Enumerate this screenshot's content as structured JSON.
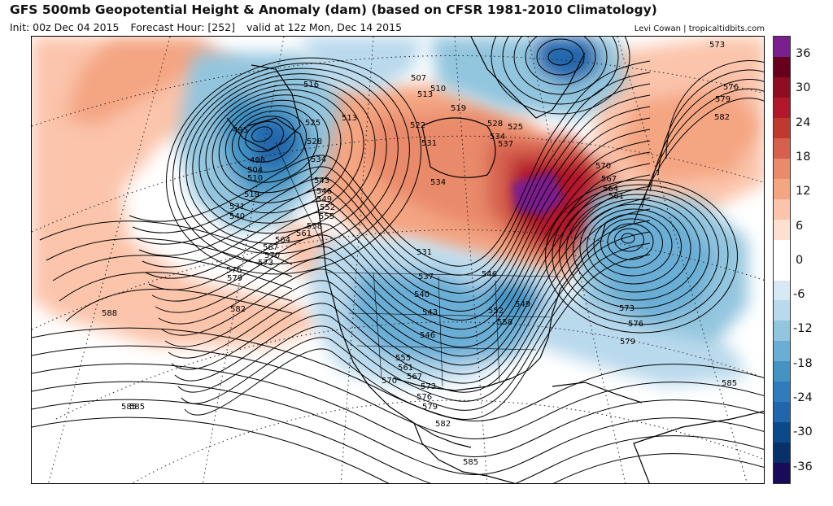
{
  "header": {
    "title": "GFS 500mb Geopotential Height & Anomaly (dam) (based on CFSR 1981-2010 Climatology)",
    "init": "Init: 00z Dec 04 2015",
    "forecast_hour": "Forecast Hour: [252]",
    "valid": "valid at 12z Mon, Dec 14 2015",
    "credit": "Levi Cowan | tropicaltidbits.com"
  },
  "colorbar": {
    "ticks": [
      "36",
      "30",
      "24",
      "18",
      "12",
      "6",
      "0",
      "-6",
      "-12",
      "-18",
      "-24",
      "-30",
      "-36"
    ],
    "colors": [
      "#1a0a5a",
      "#08306b",
      "#0b4a8a",
      "#2166ac",
      "#2f7cbc",
      "#4393c3",
      "#6aaed6",
      "#92c5de",
      "#b9d9ec",
      "#d6e9f4",
      "#ffffff",
      "#ffffff",
      "#fde0d0",
      "#fbc4ab",
      "#f4a582",
      "#e98a6a",
      "#d6604d",
      "#c0392f",
      "#b2182b",
      "#8e0d21",
      "#67001f",
      "#7b1f8e"
    ]
  },
  "contour_labels": [
    "495",
    "498",
    "504",
    "507",
    "510",
    "513",
    "516",
    "519",
    "522",
    "525",
    "528",
    "531",
    "534",
    "537",
    "540",
    "543",
    "546",
    "549",
    "552",
    "555",
    "558",
    "561",
    "564",
    "567",
    "570",
    "573",
    "576",
    "579",
    "582",
    "585",
    "588"
  ],
  "map_labels": [
    {
      "text": "495"
    },
    {
      "text": "498"
    },
    {
      "text": "504"
    },
    {
      "text": "510"
    },
    {
      "text": "519"
    },
    {
      "text": "531"
    },
    {
      "text": "540"
    },
    {
      "text": "516"
    },
    {
      "text": "525"
    },
    {
      "text": "528"
    },
    {
      "text": "534"
    },
    {
      "text": "543"
    },
    {
      "text": "546"
    },
    {
      "text": "549"
    },
    {
      "text": "552"
    },
    {
      "text": "555"
    },
    {
      "text": "558"
    },
    {
      "text": "561"
    },
    {
      "text": "564"
    },
    {
      "text": "567"
    },
    {
      "text": "570"
    },
    {
      "text": "573"
    },
    {
      "text": "576"
    },
    {
      "text": "579"
    },
    {
      "text": "582"
    },
    {
      "text": "588"
    },
    {
      "text": "585"
    },
    {
      "text": "513"
    },
    {
      "text": "507"
    },
    {
      "text": "510"
    },
    {
      "text": "513"
    },
    {
      "text": "519"
    },
    {
      "text": "522"
    },
    {
      "text": "528"
    },
    {
      "text": "525"
    },
    {
      "text": "531"
    },
    {
      "text": "534"
    },
    {
      "text": "537"
    },
    {
      "text": "534"
    },
    {
      "text": "570"
    },
    {
      "text": "567"
    },
    {
      "text": "564"
    },
    {
      "text": "561"
    },
    {
      "text": "573"
    },
    {
      "text": "576"
    },
    {
      "text": "579"
    },
    {
      "text": "582"
    },
    {
      "text": "573"
    },
    {
      "text": "576"
    },
    {
      "text": "579"
    },
    {
      "text": "531"
    },
    {
      "text": "537"
    },
    {
      "text": "540"
    },
    {
      "text": "543"
    },
    {
      "text": "546"
    },
    {
      "text": "546"
    },
    {
      "text": "549"
    },
    {
      "text": "552"
    },
    {
      "text": "558"
    },
    {
      "text": "555"
    },
    {
      "text": "561"
    },
    {
      "text": "567"
    },
    {
      "text": "570"
    },
    {
      "text": "573"
    },
    {
      "text": "576"
    },
    {
      "text": "579"
    },
    {
      "text": "582"
    },
    {
      "text": "585"
    },
    {
      "text": "585"
    },
    {
      "text": "585"
    }
  ]
}
